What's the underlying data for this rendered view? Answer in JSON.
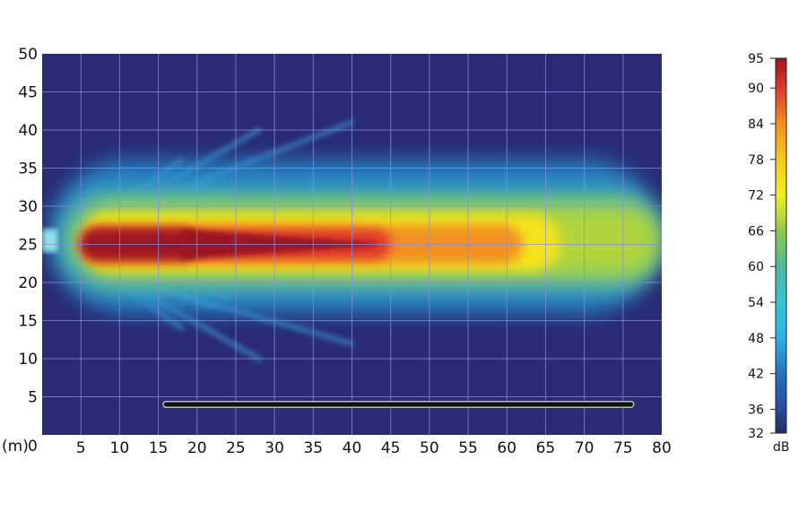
{
  "chart_data": {
    "type": "heatmap",
    "title": "",
    "x_unit_label": "(m)",
    "xlim": [
      0,
      80
    ],
    "ylim": [
      0,
      50
    ],
    "xticks": [
      0,
      5,
      10,
      15,
      20,
      25,
      30,
      35,
      40,
      45,
      50,
      55,
      60,
      65,
      70,
      75,
      80
    ],
    "yticks": [
      5,
      10,
      15,
      20,
      25,
      30,
      35,
      40,
      45,
      50
    ],
    "grid": true,
    "colorbar": {
      "label": "dB",
      "range": [
        32,
        95
      ],
      "ticks": [
        95,
        90,
        84,
        78,
        72,
        66,
        60,
        54,
        48,
        42,
        36,
        32
      ],
      "stops": [
        {
          "value": 32,
          "color": "#26286a"
        },
        {
          "value": 36,
          "color": "#2a4a9a"
        },
        {
          "value": 42,
          "color": "#2472c0"
        },
        {
          "value": 48,
          "color": "#2cb4e4"
        },
        {
          "value": 54,
          "color": "#38c4d4"
        },
        {
          "value": 60,
          "color": "#52b89c"
        },
        {
          "value": 66,
          "color": "#90c84a"
        },
        {
          "value": 72,
          "color": "#f0f020"
        },
        {
          "value": 78,
          "color": "#f8c818"
        },
        {
          "value": 84,
          "color": "#f39022"
        },
        {
          "value": 90,
          "color": "#e0382a"
        },
        {
          "value": 95,
          "color": "#9a1820"
        }
      ]
    },
    "background_level_db": 32,
    "sound_field_zones": [
      {
        "db": 45,
        "x": [
          1,
          80
        ],
        "y": [
          16,
          36
        ]
      },
      {
        "db": 58,
        "x": [
          2,
          80
        ],
        "y": [
          19,
          32
        ]
      },
      {
        "db": 68,
        "x": [
          4,
          80
        ],
        "y": [
          20.5,
          30.5
        ]
      },
      {
        "db": 74,
        "x": [
          5,
          67
        ],
        "y": [
          21.5,
          29
        ]
      },
      {
        "db": 84,
        "x": [
          5,
          62
        ],
        "y": [
          22.5,
          27.5
        ]
      },
      {
        "db": 90,
        "x": [
          5,
          45
        ],
        "y": [
          23,
          27
        ]
      },
      {
        "db": 95,
        "x": [
          5,
          20
        ],
        "y": [
          23,
          27
        ]
      }
    ],
    "source": {
      "x": [
        0,
        2
      ],
      "y": [
        24,
        27
      ]
    },
    "barrier": {
      "x": [
        16,
        76
      ],
      "y": 4
    }
  }
}
